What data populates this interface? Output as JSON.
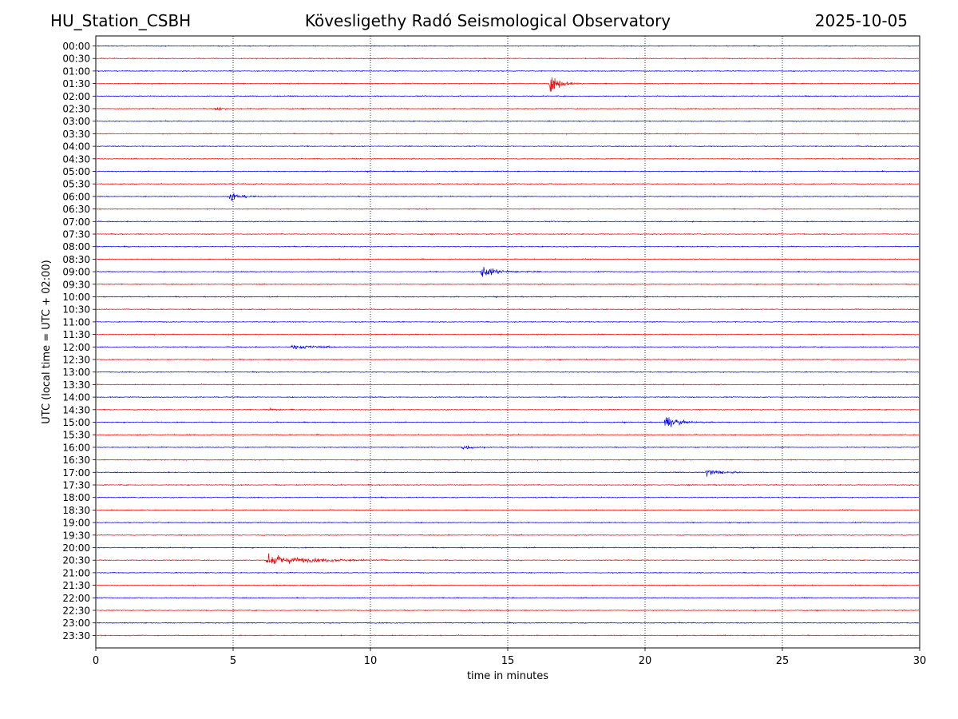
{
  "header": {
    "station": "HU_Station_CSBH",
    "title": "Kövesligethy Radó Seismological Observatory",
    "date": "2025-10-05"
  },
  "colors": {
    "even_row": "#0000ff",
    "odd_row": "#ff0000",
    "grid": "#000000",
    "axis": "#000000"
  },
  "chart_data": {
    "type": "line",
    "title": "Kövesligethy Radó Seismological Observatory",
    "xlabel": "time in minutes",
    "ylabel": "UTC (local time = UTC + 02:00)",
    "xlim": [
      0,
      30
    ],
    "xticks": [
      0,
      5,
      10,
      15,
      20,
      25,
      30
    ],
    "grid_x": [
      5,
      10,
      15,
      20,
      25
    ],
    "rows": [
      "00:00",
      "00:30",
      "01:00",
      "01:30",
      "02:00",
      "02:30",
      "03:00",
      "03:30",
      "04:00",
      "04:30",
      "05:00",
      "05:30",
      "06:00",
      "06:30",
      "07:00",
      "07:30",
      "08:00",
      "08:30",
      "09:00",
      "09:30",
      "10:00",
      "10:30",
      "11:00",
      "11:30",
      "12:00",
      "12:30",
      "13:00",
      "13:30",
      "14:00",
      "14:30",
      "15:00",
      "15:30",
      "16:00",
      "16:30",
      "17:00",
      "17:30",
      "18:00",
      "18:30",
      "19:00",
      "19:30",
      "20:00",
      "20:30",
      "21:00",
      "21:30",
      "22:00",
      "22:30",
      "23:00",
      "23:30"
    ],
    "row_colors": [
      "blue",
      "red"
    ],
    "events": [
      {
        "row": "01:30",
        "start_min": 16.5,
        "duration_min": 1.5,
        "peak_amplitude": 1.0,
        "decay_min": 0.35
      },
      {
        "row": "02:30",
        "start_min": 4.3,
        "duration_min": 0.6,
        "peak_amplitude": 0.2,
        "decay_min": 0.25
      },
      {
        "row": "03:30",
        "start_min": 8.5,
        "duration_min": 0.3,
        "peak_amplitude": 0.08,
        "decay_min": 0.1
      },
      {
        "row": "06:00",
        "start_min": 4.85,
        "duration_min": 1.3,
        "peak_amplitude": 0.6,
        "decay_min": 0.3
      },
      {
        "row": "09:00",
        "start_min": 14.0,
        "duration_min": 3.0,
        "peak_amplitude": 0.55,
        "decay_min": 0.6
      },
      {
        "row": "12:00",
        "start_min": 7.1,
        "duration_min": 1.6,
        "peak_amplitude": 0.25,
        "decay_min": 0.7
      },
      {
        "row": "14:30",
        "start_min": 6.3,
        "duration_min": 0.9,
        "peak_amplitude": 0.12,
        "decay_min": 0.4
      },
      {
        "row": "15:00",
        "start_min": 20.7,
        "duration_min": 1.8,
        "peak_amplitude": 0.75,
        "decay_min": 0.4
      },
      {
        "row": "16:00",
        "start_min": 13.3,
        "duration_min": 0.9,
        "peak_amplitude": 0.35,
        "decay_min": 0.3
      },
      {
        "row": "17:00",
        "start_min": 22.2,
        "duration_min": 1.4,
        "peak_amplitude": 0.45,
        "decay_min": 0.4
      },
      {
        "row": "20:30",
        "start_min": 6.2,
        "duration_min": 4.5,
        "peak_amplitude": 0.5,
        "decay_min": 1.5
      }
    ],
    "noise_amplitude": 0.04
  }
}
